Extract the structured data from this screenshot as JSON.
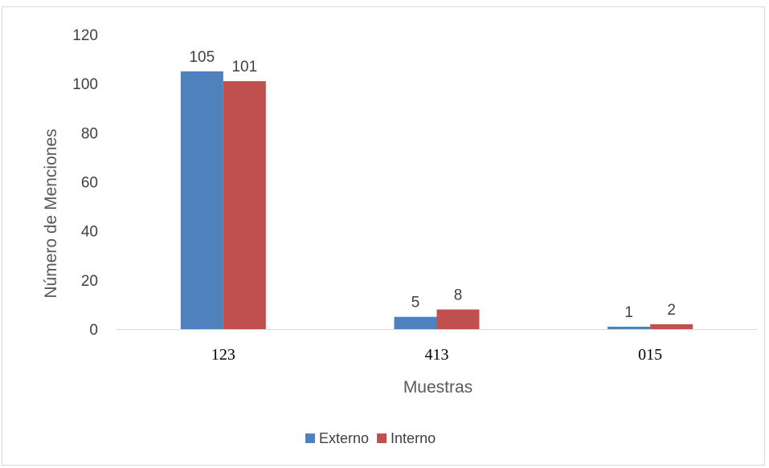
{
  "chart_data": {
    "type": "bar",
    "title": "",
    "xlabel": "Muestras",
    "ylabel": "Número de Menciones",
    "categories": [
      "123",
      "413",
      "015"
    ],
    "series": [
      {
        "name": "Externo",
        "color": "#4f81bd",
        "values": [
          105,
          5,
          1
        ]
      },
      {
        "name": "Interno",
        "color": "#c0504d",
        "values": [
          101,
          8,
          2
        ]
      }
    ],
    "ylim": [
      0,
      120
    ],
    "yticks": [
      0,
      20,
      40,
      60,
      80,
      100,
      120
    ],
    "grid": false,
    "legend_position": "bottom",
    "data_labels": true
  }
}
